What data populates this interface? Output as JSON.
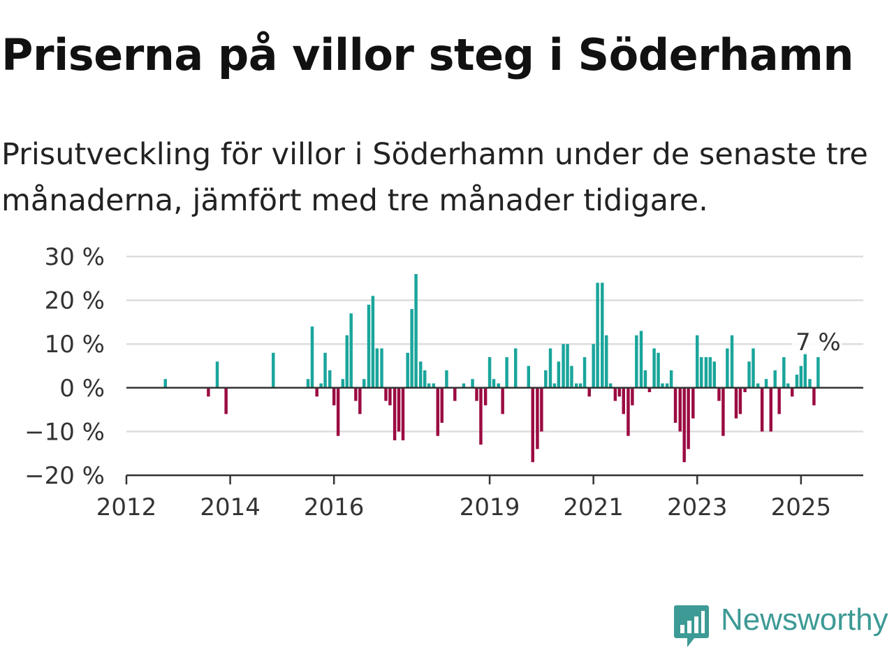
{
  "title": "Priserna på villor steg i Söderhamn",
  "subtitle": "Prisutveckling för villor i Söderhamn under de senaste tre månaderna, jämfört med tre månader tidigare.",
  "brand": {
    "name": "Newsworthy",
    "color": "#3d9a95",
    "icon": "newsworthy-bar-chart-icon"
  },
  "colors": {
    "positive": "#1aa59b",
    "negative": "#9b0b42",
    "grid": "#dddddd",
    "axis": "#333333"
  },
  "chart_data": {
    "type": "bar",
    "xlim": [
      2012,
      2026.2
    ],
    "ylim": [
      -20,
      30
    ],
    "yticks": [
      30,
      20,
      10,
      0,
      -10,
      -20
    ],
    "ytick_labels": [
      "30 %",
      "20 %",
      "10 %",
      "0 %",
      "−10 %",
      "−20 %"
    ],
    "xticks": [
      2012,
      2014,
      2016,
      2019,
      2021,
      2023,
      2025
    ],
    "xtick_labels": [
      "2012",
      "2014",
      "2016",
      "2019",
      "2021",
      "2023",
      "2025"
    ],
    "grid": true,
    "annotation": {
      "text": "7 %",
      "x": 2025.33,
      "y": 7
    },
    "x": [
      2012.75,
      2013.58,
      2013.75,
      2013.92,
      2014.83,
      2015.5,
      2015.58,
      2015.67,
      2015.75,
      2015.83,
      2015.92,
      2016.0,
      2016.08,
      2016.17,
      2016.25,
      2016.33,
      2016.42,
      2016.5,
      2016.58,
      2016.67,
      2016.75,
      2016.83,
      2016.92,
      2017.0,
      2017.08,
      2017.17,
      2017.25,
      2017.33,
      2017.42,
      2017.5,
      2017.58,
      2017.67,
      2017.75,
      2017.83,
      2017.92,
      2018.0,
      2018.08,
      2018.17,
      2018.33,
      2018.5,
      2018.67,
      2018.75,
      2018.83,
      2018.92,
      2019.0,
      2019.08,
      2019.17,
      2019.25,
      2019.33,
      2019.5,
      2019.75,
      2019.83,
      2019.92,
      2020.0,
      2020.08,
      2020.17,
      2020.25,
      2020.33,
      2020.42,
      2020.5,
      2020.58,
      2020.67,
      2020.75,
      2020.83,
      2020.92,
      2021.0,
      2021.08,
      2021.17,
      2021.25,
      2021.33,
      2021.42,
      2021.5,
      2021.58,
      2021.67,
      2021.75,
      2021.83,
      2021.92,
      2022.0,
      2022.08,
      2022.17,
      2022.25,
      2022.33,
      2022.42,
      2022.5,
      2022.58,
      2022.67,
      2022.75,
      2022.83,
      2022.92,
      2023.0,
      2023.08,
      2023.17,
      2023.25,
      2023.33,
      2023.42,
      2023.5,
      2023.58,
      2023.67,
      2023.75,
      2023.83,
      2023.92,
      2024.0,
      2024.08,
      2024.17,
      2024.25,
      2024.33,
      2024.42,
      2024.5,
      2024.58,
      2024.67,
      2024.75,
      2024.83,
      2024.92,
      2025.0,
      2025.08,
      2025.17,
      2025.25,
      2025.33
    ],
    "values": [
      2,
      -2,
      6,
      -6,
      8,
      2,
      14,
      -2,
      1,
      8,
      4,
      -4,
      -11,
      2,
      12,
      17,
      -3,
      -6,
      2,
      19,
      21,
      9,
      9,
      -3,
      -4,
      -12,
      -10,
      -12,
      8,
      18,
      26,
      6,
      4,
      1,
      1,
      -11,
      -8,
      4,
      -3,
      1,
      2,
      -3,
      -13,
      -4,
      7,
      2,
      1,
      -6,
      7,
      9,
      5,
      -17,
      -14,
      -10,
      4,
      9,
      1,
      6,
      10,
      10,
      5,
      1,
      1,
      7,
      -2,
      10,
      24,
      24,
      12,
      1,
      -3,
      -2,
      -6,
      -11,
      -4,
      12,
      13,
      4,
      -1,
      9,
      8,
      1,
      1,
      4,
      -8,
      -10,
      -17,
      -14,
      -7,
      12,
      7,
      7,
      7,
      6,
      -3,
      -11,
      9,
      12,
      -7,
      -6,
      -1,
      6,
      9,
      1,
      -10,
      2,
      -10,
      4,
      -6,
      7,
      1,
      -2,
      3,
      5,
      8,
      2,
      -4,
      7
    ]
  }
}
